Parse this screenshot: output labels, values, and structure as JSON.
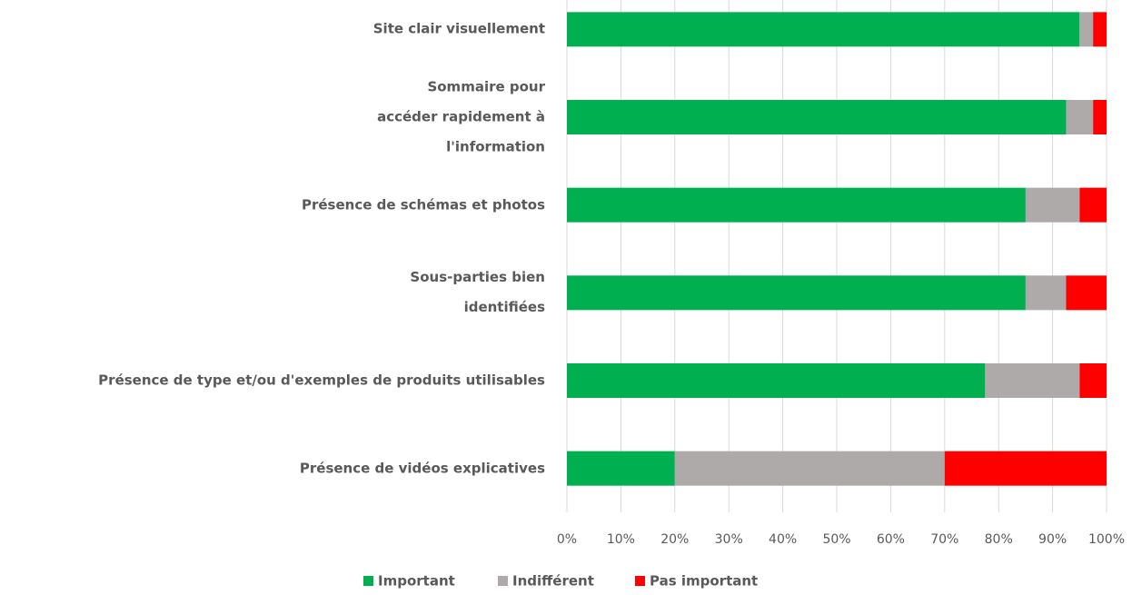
{
  "chart_data": {
    "type": "stacked_barh",
    "categories": [
      "Site clair visuellement",
      "Sommaire pour\naccéder rapidement à\nl'information",
      "Présence de schémas et photos",
      "Sous-parties bien\nidentifiées",
      "Présence de type et/ou d'exemples de produits utilisables",
      "Présence de vidéos explicatives"
    ],
    "series": [
      {
        "name": "Important",
        "color": "#00b050",
        "values": [
          95,
          92.5,
          85,
          85,
          77.5,
          20
        ]
      },
      {
        "name": "Indifférent",
        "color": "#aeaaaa",
        "values": [
          2.5,
          5,
          10,
          7.5,
          17.5,
          50
        ]
      },
      {
        "name": "Pas important",
        "color": "#ff0000",
        "values": [
          2.5,
          2.5,
          5,
          7.5,
          5,
          30
        ]
      }
    ],
    "xlim": [
      0,
      100
    ],
    "xticks": [
      {
        "value": 0,
        "label": "0%"
      },
      {
        "value": 10,
        "label": "10%"
      },
      {
        "value": 20,
        "label": "20%"
      },
      {
        "value": 30,
        "label": "30%"
      },
      {
        "value": 40,
        "label": "40%"
      },
      {
        "value": 50,
        "label": "50%"
      },
      {
        "value": 60,
        "label": "60%"
      },
      {
        "value": 70,
        "label": "70%"
      },
      {
        "value": 80,
        "label": "80%"
      },
      {
        "value": 90,
        "label": "90%"
      },
      {
        "value": 100,
        "label": "100%"
      }
    ],
    "grid": true,
    "legend": "bottom"
  }
}
